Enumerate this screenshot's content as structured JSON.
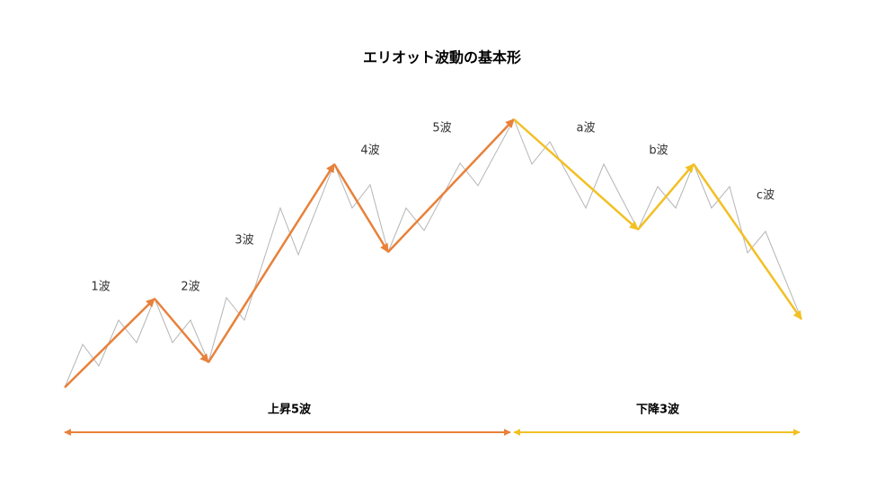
{
  "title": "エリオット波動の基本形",
  "waves": {
    "w1": "1波",
    "w2": "2波",
    "w3": "3波",
    "w4": "4波",
    "w5": "5波",
    "wa": "a波",
    "wb": "b波",
    "wc": "c波"
  },
  "phases": {
    "up": "上昇5波",
    "down": "下降3波"
  }
}
